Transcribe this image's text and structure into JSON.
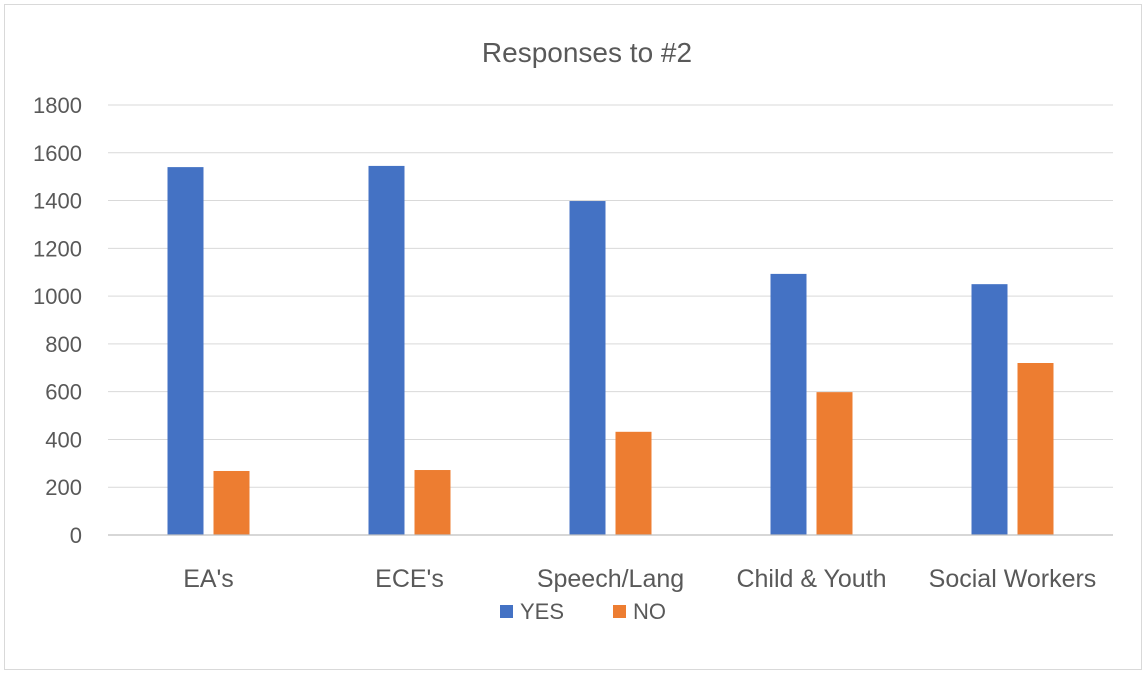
{
  "chart_data": {
    "type": "bar",
    "title": "Responses to #2",
    "xlabel": "",
    "ylabel": "",
    "categories": [
      "EA's",
      "ECE's",
      "Speech/Lang",
      "Child & Youth",
      "Social Workers"
    ],
    "series": [
      {
        "name": "YES",
        "color": "#4472C4",
        "values": [
          1540,
          1545,
          1398,
          1093,
          1050
        ]
      },
      {
        "name": "NO",
        "color": "#ED7D31",
        "values": [
          268,
          272,
          432,
          598,
          720
        ]
      }
    ],
    "ylim": [
      0,
      1800
    ],
    "yticks": [
      0,
      200,
      400,
      600,
      800,
      1000,
      1200,
      1400,
      1600,
      1800
    ],
    "grid": true,
    "legend_position": "bottom"
  }
}
